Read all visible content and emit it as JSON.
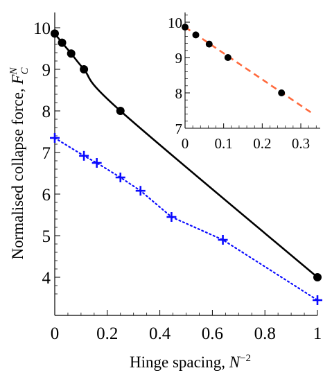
{
  "chart_data": [
    {
      "type": "line",
      "xlabel": "Hinge spacing, N−2",
      "ylabel": "Normalised collapse force, F_C^N",
      "xlim": [
        0,
        1
      ],
      "ylim": [
        3.5,
        10
      ],
      "xticks": [
        0,
        0.2,
        0.4,
        0.6,
        0.8,
        1
      ],
      "xtick_labels": [
        "0",
        "0.2",
        "0.4",
        "0.6",
        "0.8",
        "1"
      ],
      "yticks": [
        4,
        5,
        6,
        7,
        8,
        9,
        10
      ],
      "ytick_labels": [
        "4",
        "5",
        "6",
        "7",
        "8",
        "9",
        "10"
      ],
      "grid": false,
      "series": [
        {
          "style": "solid black curve with filled circles",
          "color": "#000000",
          "x": [
            0,
            0.0278,
            0.0625,
            0.1111,
            0.25,
            1
          ],
          "y": [
            9.86,
            9.64,
            9.38,
            9.0,
            8.0,
            4.0
          ]
        },
        {
          "style": "dotted blue line with plus markers",
          "color": "#0a0aff",
          "x": [
            0,
            0.1111,
            0.16,
            0.25,
            0.3265,
            0.4444,
            0.64,
            1
          ],
          "y": [
            7.35,
            6.92,
            6.75,
            6.4,
            6.08,
            5.45,
            4.9,
            3.45
          ]
        }
      ]
    },
    {
      "type": "scatter",
      "placement": "inset top-right",
      "xlim": [
        0,
        0.33
      ],
      "ylim": [
        7,
        10
      ],
      "xticks": [
        0,
        0.1,
        0.2,
        0.3
      ],
      "xtick_labels": [
        "0",
        "0.1",
        "0.2",
        "0.3"
      ],
      "yticks": [
        7,
        8,
        9,
        10
      ],
      "ytick_labels": [
        "7",
        "8",
        "9",
        "10"
      ],
      "series": [
        {
          "style": "black filled circles",
          "color": "#000000",
          "x": [
            0,
            0.0278,
            0.0625,
            0.1111,
            0.25
          ],
          "y": [
            9.86,
            9.64,
            9.38,
            9.0,
            8.0
          ]
        },
        {
          "style": "dashed orange linear fit",
          "color": "#ff6a3d",
          "x": [
            0,
            0.33
          ],
          "y": [
            9.86,
            7.42
          ]
        }
      ]
    }
  ]
}
